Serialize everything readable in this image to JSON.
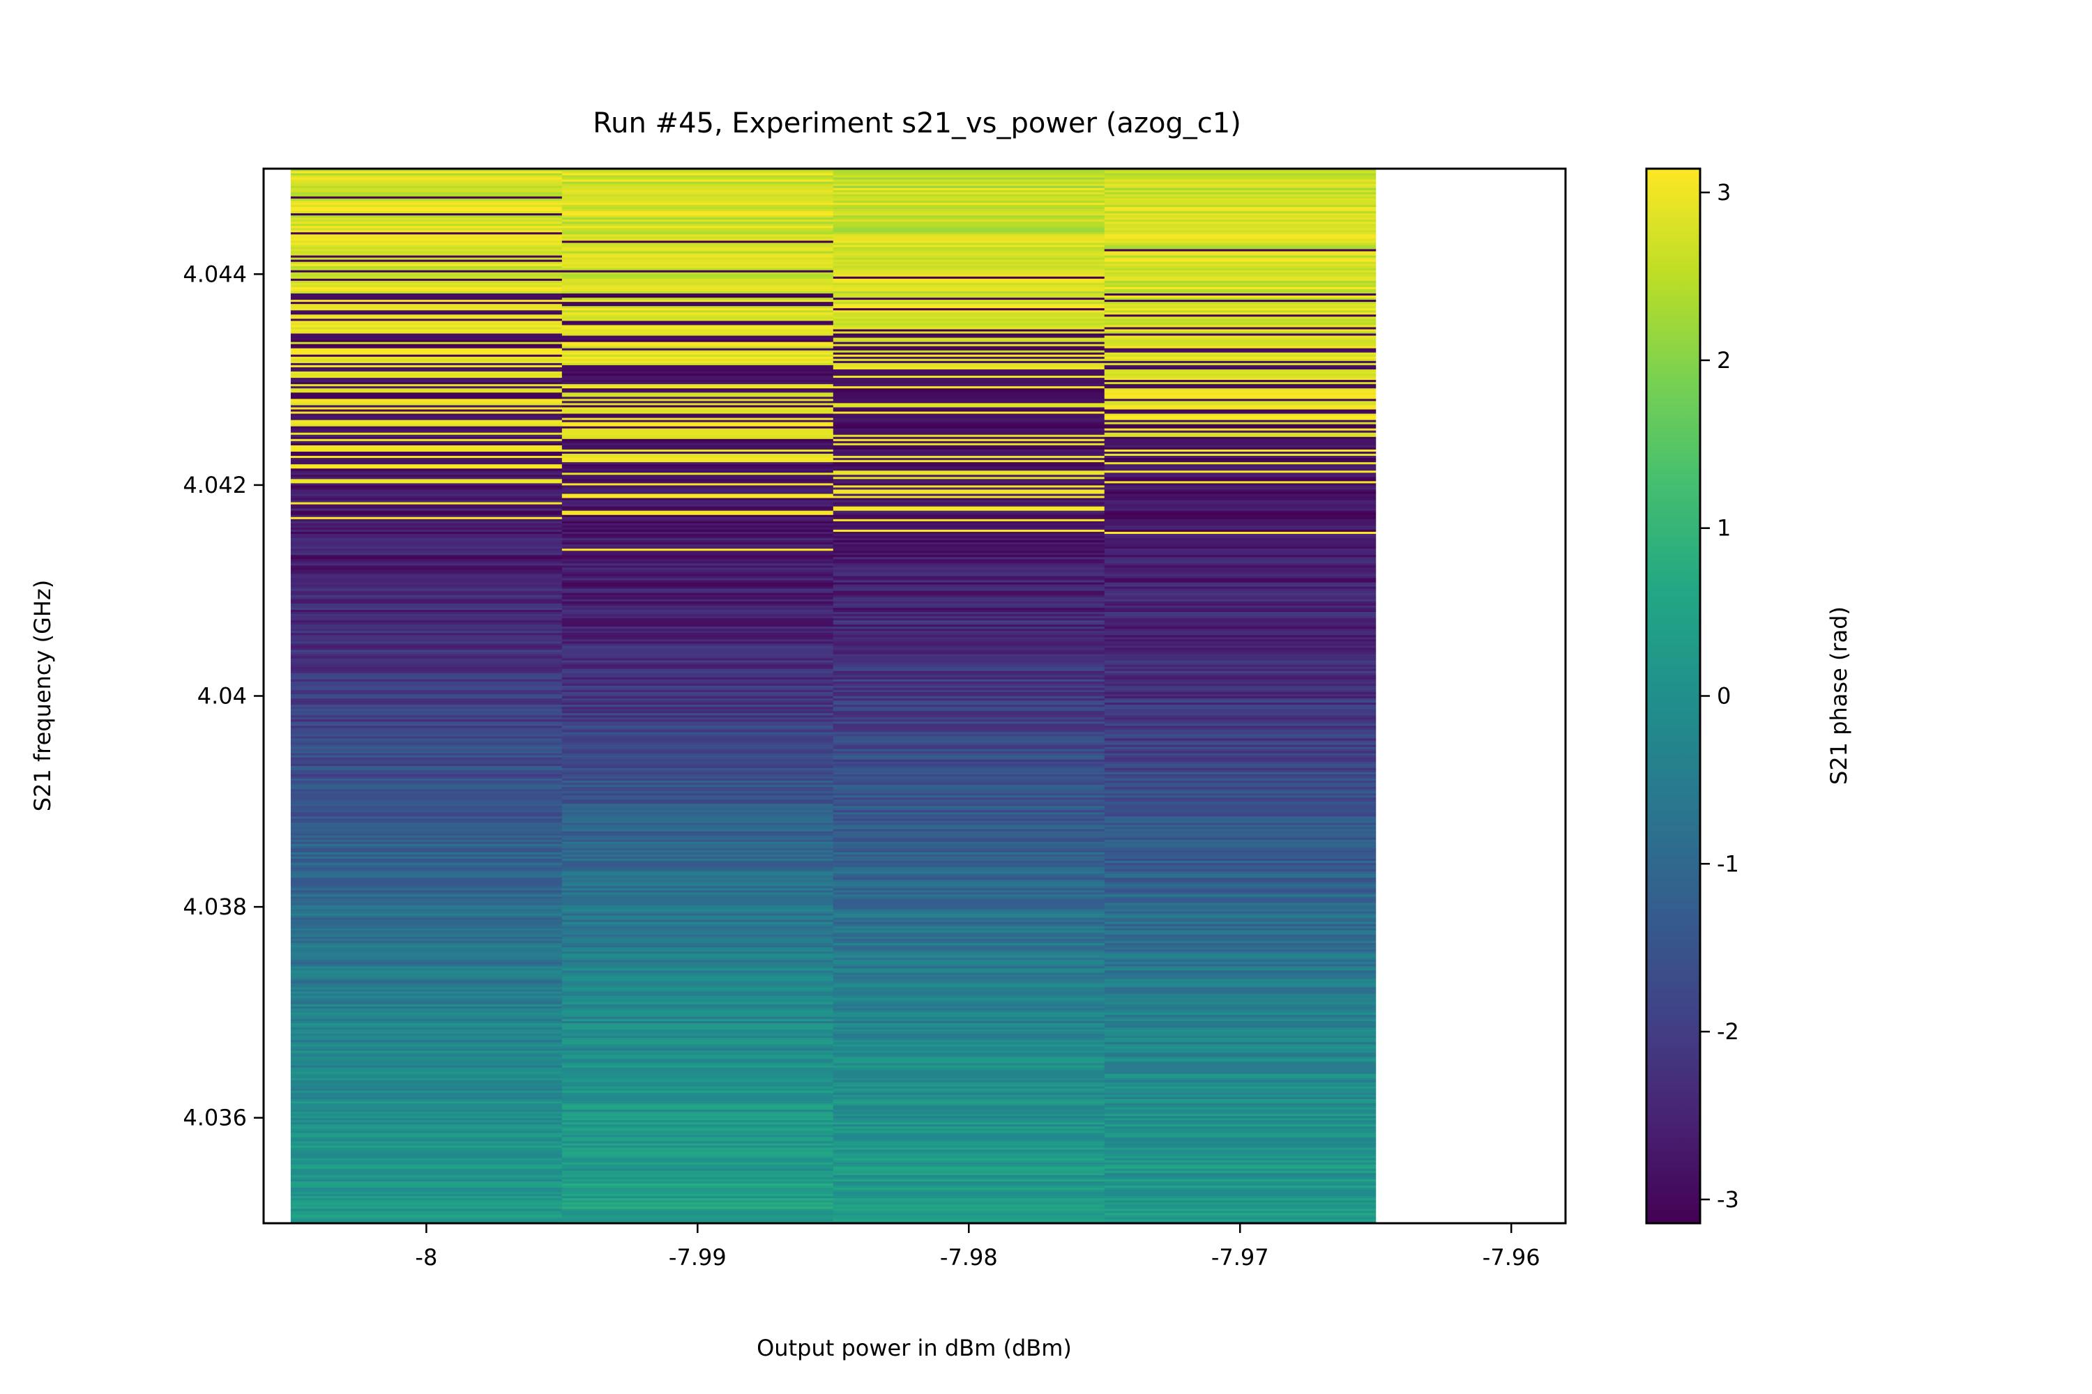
{
  "chart_data": {
    "type": "heatmap",
    "title": "Run #45, Experiment s21_vs_power (azog_c1)",
    "xlabel": "Output power in dBm (dBm)",
    "ylabel": "S21 frequency (GHz)",
    "colorbar_label": "S21 phase (rad)",
    "colormap": "viridis",
    "x": [
      -8.0,
      -7.99,
      -7.98,
      -7.97
    ],
    "x_range": [
      -8.006,
      -7.958
    ],
    "y_range": [
      4.035,
      4.045
    ],
    "c_range": [
      -3.1416,
      3.1416
    ],
    "x_ticks": [
      {
        "value": -8.0,
        "label": "-8"
      },
      {
        "value": -7.99,
        "label": "-7.99"
      },
      {
        "value": -7.98,
        "label": "-7.98"
      },
      {
        "value": -7.97,
        "label": "-7.97"
      },
      {
        "value": -7.96,
        "label": "-7.96"
      }
    ],
    "y_ticks": [
      {
        "value": 4.036,
        "label": "4.036"
      },
      {
        "value": 4.038,
        "label": "4.038"
      },
      {
        "value": 4.04,
        "label": "4.04"
      },
      {
        "value": 4.042,
        "label": "4.042"
      },
      {
        "value": 4.044,
        "label": "4.044"
      }
    ],
    "c_ticks": [
      {
        "value": -3,
        "label": "-3"
      },
      {
        "value": -2,
        "label": "-2"
      },
      {
        "value": -1,
        "label": "-1"
      },
      {
        "value": 0,
        "label": "0"
      },
      {
        "value": 1,
        "label": "1"
      },
      {
        "value": 2,
        "label": "2"
      },
      {
        "value": 3,
        "label": "3"
      }
    ],
    "phase_profile": [
      {
        "freq": 4.035,
        "phase": [
          0.2,
          0.45,
          0.35,
          0.25
        ]
      },
      {
        "freq": 4.036,
        "phase": [
          0.0,
          0.2,
          0.1,
          0.05
        ]
      },
      {
        "freq": 4.037,
        "phase": [
          -0.4,
          -0.2,
          -0.35,
          -0.45
        ]
      },
      {
        "freq": 4.038,
        "phase": [
          -0.9,
          -0.7,
          -0.85,
          -0.95
        ]
      },
      {
        "freq": 4.039,
        "phase": [
          -1.5,
          -1.35,
          -1.45,
          -1.6
        ]
      },
      {
        "freq": 4.04,
        "phase": [
          -2.0,
          -2.1,
          -2.0,
          -2.2
        ]
      },
      {
        "freq": 4.041,
        "phase": [
          -2.5,
          -2.6,
          -2.6,
          -2.55
        ]
      },
      {
        "freq": 4.042,
        "phase": [
          -2.85,
          -2.95,
          -2.95,
          -2.9
        ]
      },
      {
        "freq": 4.043,
        "phase": [
          -3.05,
          3.1,
          -3.1,
          3.05
        ]
      },
      {
        "freq": 4.044,
        "phase": [
          2.9,
          2.8,
          2.7,
          2.75
        ]
      },
      {
        "freq": 4.045,
        "phase": [
          2.8,
          2.7,
          2.6,
          2.7
        ]
      }
    ],
    "phase_noise_rad": 0.45,
    "frequency_points": 500
  }
}
